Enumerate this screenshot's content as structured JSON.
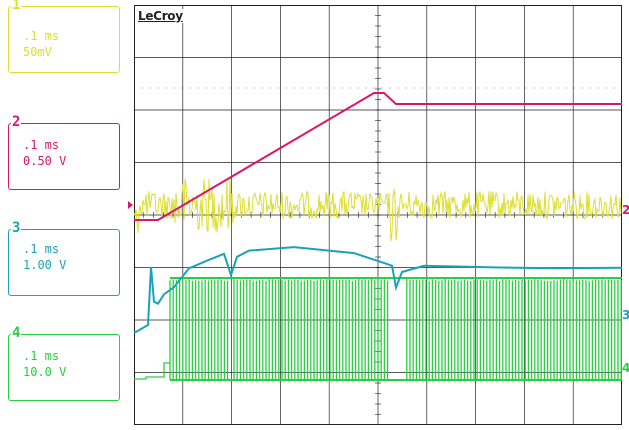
{
  "colors": {
    "ch1": "#dede30",
    "ch2": "#d8176b",
    "ch3": "#1aa3b6",
    "ch4": "#27d03e",
    "grid": "#222222"
  },
  "brand": "LeCroy",
  "channels": [
    {
      "id": "ch1",
      "number": "1",
      "timebase": ".1 ms",
      "scale": "50mV"
    },
    {
      "id": "ch2",
      "number": "2",
      "timebase": ".1 ms",
      "scale": "0.50 V"
    },
    {
      "id": "ch3",
      "number": "3",
      "timebase": ".1 ms",
      "scale": "1.00 V"
    },
    {
      "id": "ch4",
      "number": "4",
      "timebase": ".1 ms",
      "scale": "10.0 V"
    }
  ],
  "markers": {
    "ch2": "2",
    "ch3": "3",
    "ch4": "4"
  }
}
